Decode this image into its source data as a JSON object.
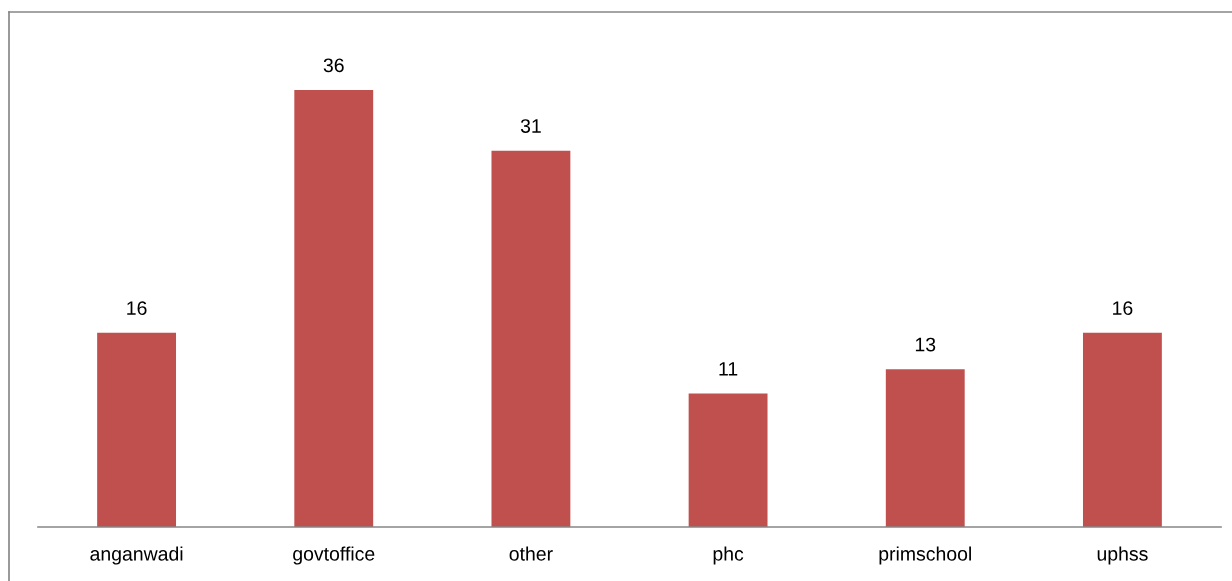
{
  "chart_data": {
    "type": "bar",
    "categories": [
      "anganwadi",
      "govtoffice",
      "other",
      "phc",
      "primschool",
      "uphss"
    ],
    "values": [
      16,
      36,
      31,
      11,
      13,
      16
    ],
    "color": "#c0504d",
    "data_labels": true,
    "tick_labels": "x",
    "grid": false,
    "legend": false
  }
}
